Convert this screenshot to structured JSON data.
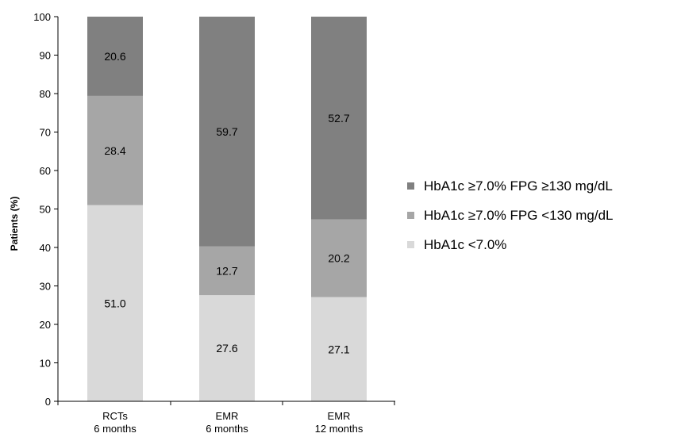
{
  "chart_data": {
    "type": "bar",
    "stacked": true,
    "title": "",
    "ylabel": "Patients (%)",
    "xlabel": "",
    "ylim": [
      0,
      100
    ],
    "yticks": [
      0,
      10,
      20,
      30,
      40,
      50,
      60,
      70,
      80,
      90,
      100
    ],
    "grid": false,
    "legend_position": "right",
    "categories": [
      [
        "RCTs",
        "6 months"
      ],
      [
        "EMR",
        "6 months"
      ],
      [
        "EMR",
        "12 months"
      ]
    ],
    "series": [
      {
        "name": "HbA1c <7.0%",
        "color": "#d9d9d9",
        "values": [
          51.0,
          27.6,
          27.1
        ],
        "labels": [
          "51.0",
          "27.6",
          "27.1"
        ]
      },
      {
        "name": "HbA1c ≥7.0% FPG <130 mg/dL",
        "color": "#a6a6a6",
        "values": [
          28.4,
          12.7,
          20.2
        ],
        "labels": [
          "28.4",
          "12.7",
          "20.2"
        ]
      },
      {
        "name": "HbA1c ≥7.0% FPG ≥130 mg/dL",
        "color": "#808080",
        "values": [
          20.6,
          59.7,
          52.7
        ],
        "labels": [
          "20.6",
          "59.7",
          "52.7"
        ]
      }
    ]
  }
}
